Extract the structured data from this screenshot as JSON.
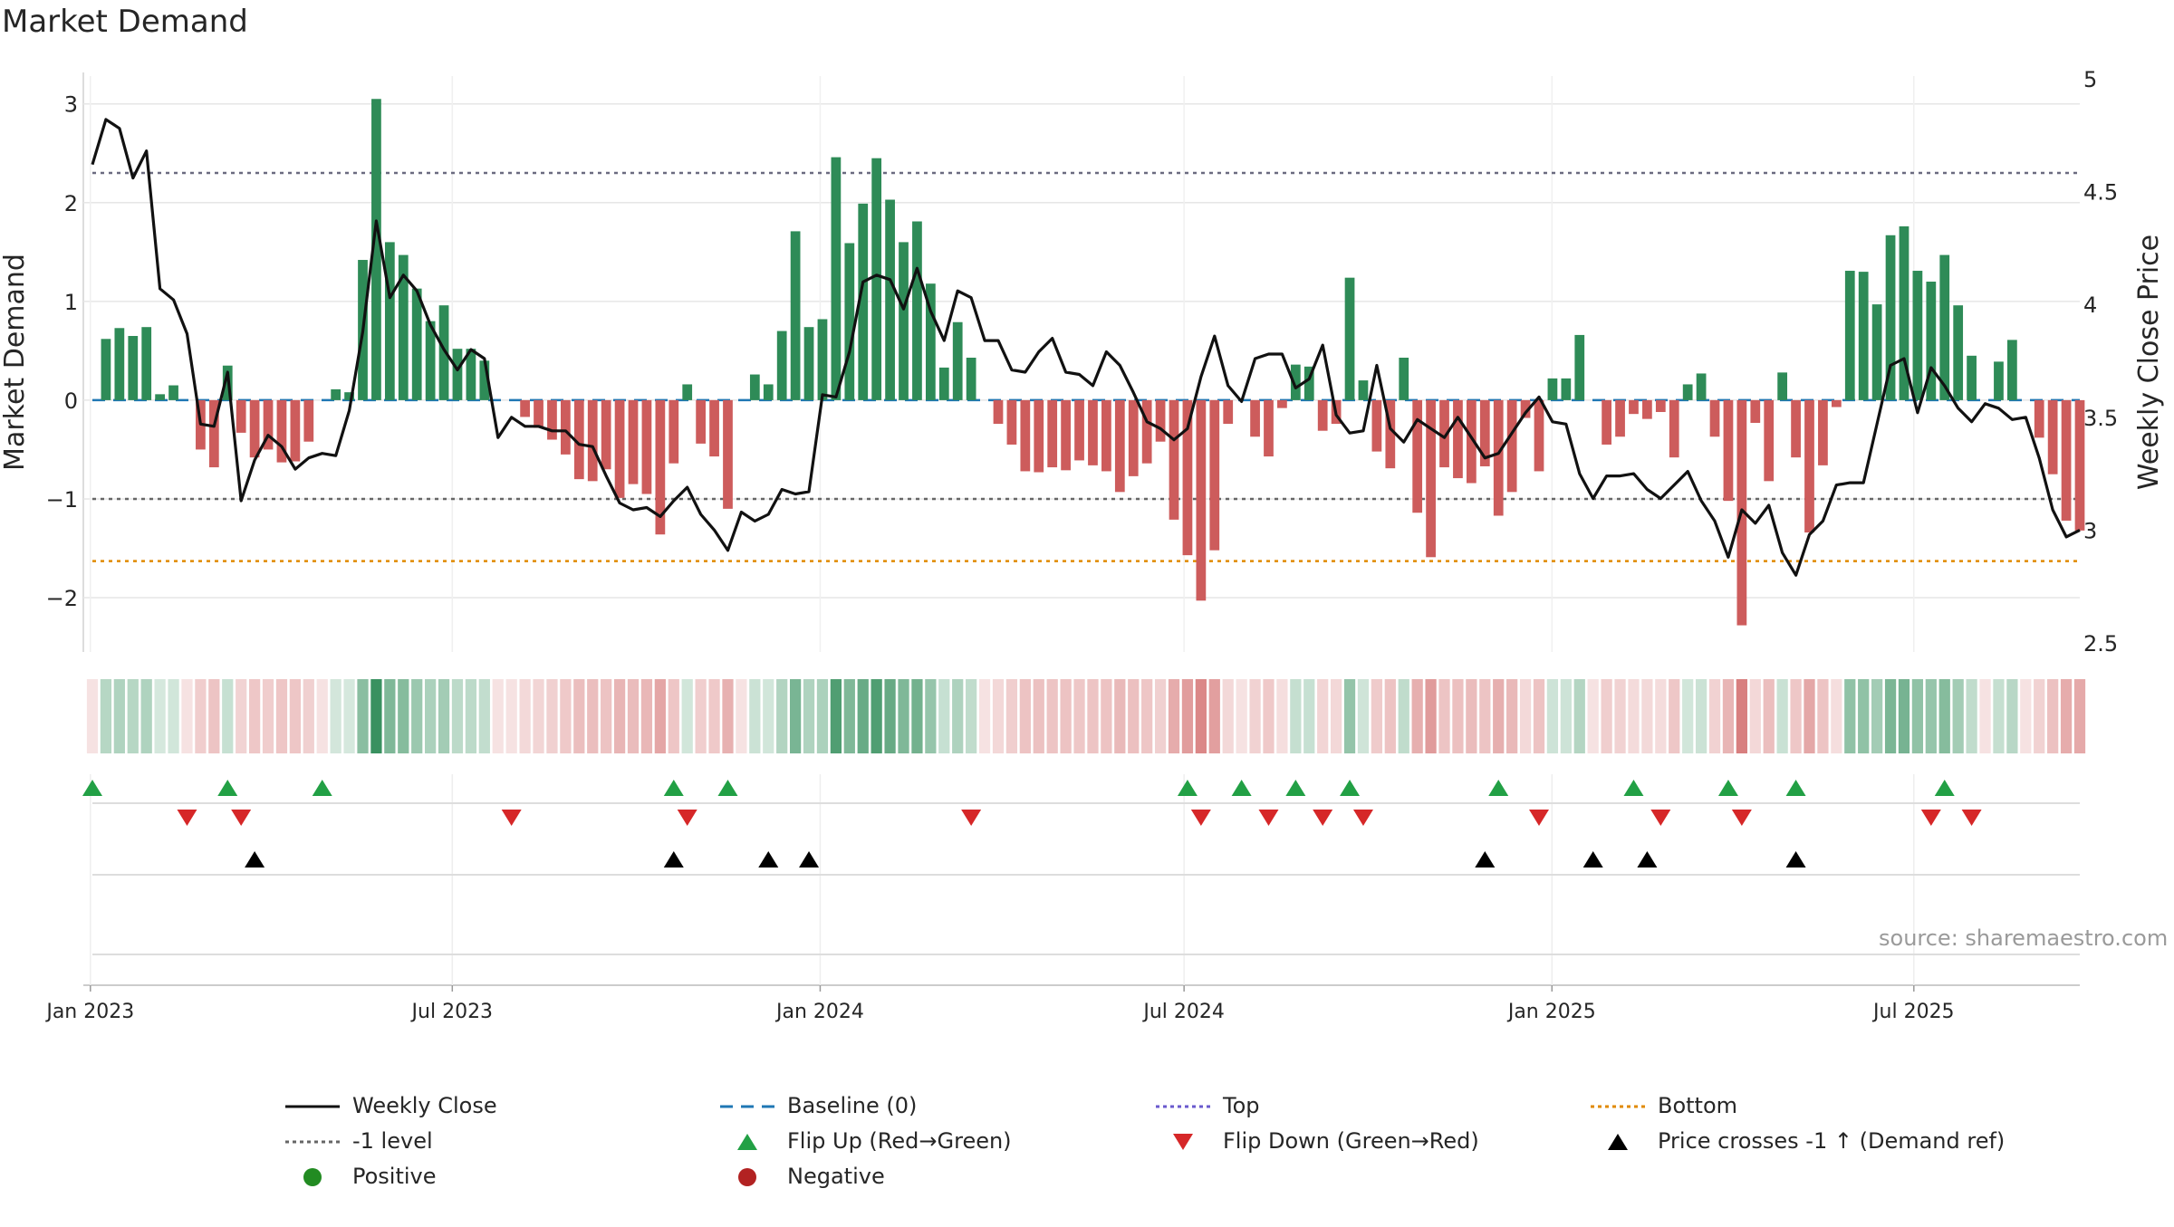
{
  "chart_data": {
    "type": "bar+line",
    "title": "Market Demand",
    "ylabel_left": "Market Demand",
    "ylabel_right": "Weekly Close Price",
    "source": "source: sharemaestro.com",
    "ylim_left": [
      -2.55,
      3.3
    ],
    "ylim_right": [
      2.5,
      5.0
    ],
    "left_ticks": [
      3,
      2,
      1,
      0,
      -1,
      -2
    ],
    "left_tick_labels": [
      "3",
      "2",
      "1",
      "0",
      "−1",
      "−2"
    ],
    "right_ticks": [
      5,
      4.5,
      4,
      3.5,
      3,
      2.5
    ],
    "right_tick_labels": [
      "5",
      "4.5",
      "4",
      "3.5",
      "3",
      "2.5"
    ],
    "x_start_date": "2023-01-02",
    "x_end_date": "2025-09-22",
    "week_count": 144,
    "x_tick_labels": [
      {
        "date": "2023-01-01",
        "label": "Jan 2023"
      },
      {
        "date": "2023-07-01",
        "label": "Jul 2023"
      },
      {
        "date": "2024-01-01",
        "label": "Jan 2024"
      },
      {
        "date": "2024-07-01",
        "label": "Jul 2024"
      },
      {
        "date": "2025-01-01",
        "label": "Jan 2025"
      },
      {
        "date": "2025-07-01",
        "label": "Jul 2025"
      }
    ],
    "reference_lines": {
      "top": 2.3,
      "minus_one": -1.0,
      "bottom": -1.63,
      "baseline": 0
    },
    "colors": {
      "positive": "#2e8b57",
      "negative": "#cd5c5c",
      "close": "#111111",
      "baseline": "#1f77b4",
      "top": "#6a5acd",
      "minus_one": "#666666",
      "bottom": "#e08a00",
      "flip_up": "#22a045",
      "flip_down": "#d62728",
      "price_cross": "#000000",
      "grid": "#e6e6e6"
    },
    "demand": [
      0.0,
      0.62,
      0.73,
      0.65,
      0.74,
      0.06,
      0.15,
      0.0,
      -0.5,
      -0.68,
      0.35,
      -0.33,
      -0.58,
      -0.5,
      -0.63,
      -0.62,
      -0.42,
      0.0,
      0.11,
      0.08,
      1.42,
      3.05,
      1.6,
      1.47,
      1.13,
      0.8,
      0.96,
      0.52,
      0.52,
      0.4,
      0.0,
      0.0,
      -0.17,
      -0.28,
      -0.4,
      -0.55,
      -0.8,
      -0.82,
      -0.7,
      -0.99,
      -0.85,
      -0.95,
      -1.36,
      -0.64,
      0.16,
      -0.44,
      -0.57,
      -1.1,
      0.0,
      0.26,
      0.16,
      0.7,
      1.71,
      0.74,
      0.82,
      2.46,
      1.59,
      1.99,
      2.45,
      2.03,
      1.6,
      1.81,
      1.18,
      0.33,
      0.79,
      0.43,
      0.0,
      -0.24,
      -0.45,
      -0.72,
      -0.73,
      -0.68,
      -0.71,
      -0.61,
      -0.66,
      -0.72,
      -0.93,
      -0.77,
      -0.64,
      -0.42,
      -1.21,
      -1.57,
      -2.03,
      -1.52,
      -0.24,
      0.0,
      -0.37,
      -0.57,
      -0.08,
      0.36,
      0.34,
      -0.31,
      -0.24,
      1.24,
      0.2,
      -0.52,
      -0.69,
      0.43,
      -1.14,
      -1.59,
      -0.68,
      -0.79,
      -0.84,
      -0.67,
      -1.17,
      -0.93,
      -0.18,
      -0.72,
      0.22,
      0.22,
      0.66,
      0.0,
      -0.45,
      -0.37,
      -0.14,
      -0.19,
      -0.12,
      -0.58,
      0.16,
      0.27,
      -0.37,
      -1.02,
      -2.28,
      -0.23,
      -0.82,
      0.28,
      -0.58,
      -1.34,
      -0.66,
      -0.07,
      1.31,
      1.3,
      0.97,
      1.67,
      1.76,
      1.31,
      1.2,
      1.47,
      0.96,
      0.45,
      0.0,
      0.39,
      0.61,
      0.0,
      -0.38,
      -0.75,
      -1.22,
      -1.32
    ],
    "close": [
      4.62,
      4.82,
      4.78,
      4.56,
      4.68,
      4.07,
      4.02,
      3.87,
      3.47,
      3.46,
      3.7,
      3.13,
      3.31,
      3.42,
      3.37,
      3.27,
      3.32,
      3.34,
      3.33,
      3.53,
      3.88,
      4.37,
      4.03,
      4.13,
      4.06,
      3.91,
      3.8,
      3.71,
      3.8,
      3.76,
      3.41,
      3.5,
      3.46,
      3.46,
      3.44,
      3.44,
      3.38,
      3.37,
      3.24,
      3.12,
      3.09,
      3.1,
      3.06,
      3.13,
      3.19,
      3.07,
      3.0,
      2.91,
      3.08,
      3.04,
      3.07,
      3.18,
      3.16,
      3.17,
      3.6,
      3.59,
      3.79,
      4.1,
      4.13,
      4.11,
      3.98,
      4.16,
      3.97,
      3.84,
      4.06,
      4.03,
      3.84,
      3.84,
      3.71,
      3.7,
      3.79,
      3.85,
      3.7,
      3.69,
      3.64,
      3.79,
      3.73,
      3.61,
      3.48,
      3.45,
      3.4,
      3.45,
      3.68,
      3.86,
      3.64,
      3.57,
      3.76,
      3.78,
      3.78,
      3.63,
      3.67,
      3.82,
      3.51,
      3.43,
      3.44,
      3.73,
      3.45,
      3.39,
      3.49,
      3.45,
      3.41,
      3.5,
      3.41,
      3.32,
      3.34,
      3.43,
      3.52,
      3.59,
      3.48,
      3.47,
      3.25,
      3.14,
      3.24,
      3.24,
      3.25,
      3.18,
      3.14,
      3.2,
      3.26,
      3.13,
      3.04,
      2.88,
      3.09,
      3.03,
      3.11,
      2.9,
      2.8,
      2.98,
      3.04,
      3.2,
      3.21,
      3.21,
      3.47,
      3.73,
      3.76,
      3.52,
      3.72,
      3.64,
      3.54,
      3.48,
      3.56,
      3.54,
      3.49,
      3.5,
      3.32,
      3.09,
      2.97,
      3.0
    ],
    "flip_up_weeks": [
      0,
      10,
      17,
      43,
      47,
      81,
      85,
      89,
      93,
      104,
      114,
      121,
      126,
      137
    ],
    "flip_down_weeks": [
      7,
      11,
      31,
      44,
      65,
      82,
      87,
      91,
      94,
      107,
      116,
      122,
      136,
      139
    ],
    "price_cross_weeks": [
      12,
      43,
      50,
      53,
      103,
      111,
      115,
      126
    ],
    "legend": [
      {
        "key": "close",
        "label": "Weekly Close"
      },
      {
        "key": "baseline",
        "label": "Baseline (0)"
      },
      {
        "key": "top",
        "label": "Top"
      },
      {
        "key": "bottom",
        "label": "Bottom"
      },
      {
        "key": "minus_one",
        "label": "-1 level"
      },
      {
        "key": "flip_up",
        "label": "Flip Up (Red→Green)"
      },
      {
        "key": "flip_down",
        "label": "Flip Down (Green→Red)"
      },
      {
        "key": "price_cross",
        "label": "Price crosses -1 ↑ (Demand ref)"
      },
      {
        "key": "positive",
        "label": "Positive"
      },
      {
        "key": "negative",
        "label": "Negative"
      }
    ]
  }
}
